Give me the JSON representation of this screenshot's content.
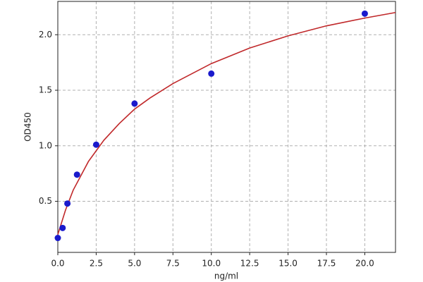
{
  "chart_data": {
    "type": "scatter",
    "x_label": "ng/ml",
    "y_label": "OD450",
    "x": [
      0,
      0.3125,
      0.625,
      1.25,
      2.5,
      5,
      10,
      20
    ],
    "values": [
      0.17,
      0.26,
      0.48,
      0.74,
      1.01,
      1.38,
      1.65,
      2.19
    ],
    "color": "#1a1acc",
    "curve": {
      "type": "line",
      "color": "#c0282a",
      "x": [
        0,
        0.5,
        1,
        2,
        3,
        4,
        5,
        6,
        7.5,
        10,
        12.5,
        15,
        17.5,
        20,
        22
      ],
      "values": [
        0.2,
        0.42,
        0.6,
        0.86,
        1.05,
        1.2,
        1.33,
        1.43,
        1.56,
        1.74,
        1.88,
        1.99,
        2.08,
        2.15,
        2.2
      ]
    },
    "xlim": [
      0,
      22
    ],
    "ylim": [
      0.04,
      2.3
    ],
    "xticks": [
      {
        "value": 0,
        "label": "0.0"
      },
      2.5,
      {
        "value": 5,
        "label": "5.0"
      },
      7.5,
      {
        "value": 10,
        "label": "10.0"
      },
      12.5,
      {
        "value": 15,
        "label": "15.0"
      },
      17.5,
      {
        "value": 20,
        "label": "20.0"
      }
    ],
    "yticks": [
      0.5,
      {
        "value": 1,
        "label": "1.0"
      },
      1.5,
      {
        "value": 2,
        "label": "2.0"
      }
    ],
    "grid": true
  }
}
